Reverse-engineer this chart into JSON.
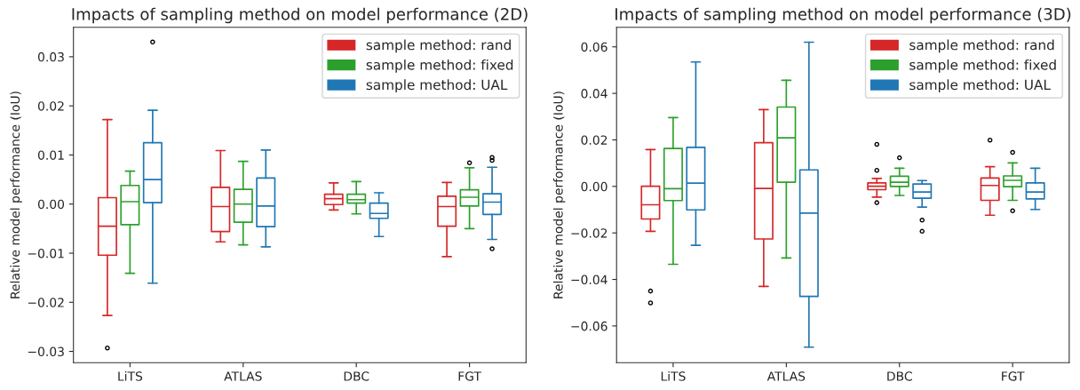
{
  "chart_data": [
    {
      "type": "box",
      "title": "Impacts of sampling method on model performance (2D)",
      "ylabel": "Relative model performance (IoU)",
      "categories": [
        "LiTS",
        "ATLAS",
        "DBC",
        "FGT"
      ],
      "ylim": [
        -0.0323,
        0.036
      ],
      "yticks": [
        {
          "value": -0.03,
          "label": "−0.03"
        },
        {
          "value": -0.02,
          "label": "−0.02"
        },
        {
          "value": -0.01,
          "label": "−0.01"
        },
        {
          "value": 0.0,
          "label": "0.00"
        },
        {
          "value": 0.01,
          "label": "0.01"
        },
        {
          "value": 0.02,
          "label": "0.02"
        },
        {
          "value": 0.03,
          "label": "0.03"
        }
      ],
      "legend": "top right",
      "series": [
        {
          "name": "sample method: rand",
          "color": "#d62728",
          "boxes": [
            {
              "low": -0.0227,
              "q1": -0.0104,
              "median": -0.0045,
              "q3": 0.0013,
              "high": 0.0172,
              "outliers": [
                -0.0293
              ]
            },
            {
              "low": -0.0077,
              "q1": -0.0056,
              "median": -0.0005,
              "q3": 0.0034,
              "high": 0.0109
            },
            {
              "low": -0.0012,
              "q1": -0.0001,
              "median": 0.0011,
              "q3": 0.002,
              "high": 0.0043
            },
            {
              "low": -0.0107,
              "q1": -0.0045,
              "median": -0.0005,
              "q3": 0.0016,
              "high": 0.0044
            }
          ]
        },
        {
          "name": "sample method: fixed",
          "color": "#2ca02c",
          "boxes": [
            {
              "low": -0.0141,
              "q1": -0.0042,
              "median": 0.0005,
              "q3": 0.0038,
              "high": 0.0067
            },
            {
              "low": -0.0083,
              "q1": -0.0037,
              "median": 0.0,
              "q3": 0.003,
              "high": 0.0087
            },
            {
              "low": -0.002,
              "q1": 0.0002,
              "median": 0.0009,
              "q3": 0.002,
              "high": 0.0046
            },
            {
              "low": -0.005,
              "q1": -0.0004,
              "median": 0.0014,
              "q3": 0.0029,
              "high": 0.0074,
              "outliers": [
                0.0084
              ]
            }
          ]
        },
        {
          "name": "sample method: UAL",
          "color": "#1f77b4",
          "boxes": [
            {
              "low": -0.0161,
              "q1": 0.0003,
              "median": 0.005,
              "q3": 0.0125,
              "high": 0.0191,
              "outliers": [
                0.033
              ]
            },
            {
              "low": -0.0087,
              "q1": -0.0046,
              "median": -0.0004,
              "q3": 0.0053,
              "high": 0.011
            },
            {
              "low": -0.0066,
              "q1": -0.0029,
              "median": -0.0019,
              "q3": 0.0002,
              "high": 0.0023
            },
            {
              "low": -0.0072,
              "q1": -0.0021,
              "median": 0.0004,
              "q3": 0.0021,
              "high": 0.0075,
              "outliers": [
                0.0095,
                0.0089,
                -0.0091
              ]
            }
          ]
        }
      ]
    },
    {
      "type": "box",
      "title": "Impacts of sampling method on model performance (3D)",
      "ylabel": "Relative model performance (IoU)",
      "categories": [
        "LiTS",
        "ATLAS",
        "DBC",
        "FGT"
      ],
      "ylim": [
        -0.0758,
        0.0684
      ],
      "yticks": [
        {
          "value": -0.06,
          "label": "−0.06"
        },
        {
          "value": -0.04,
          "label": "−0.04"
        },
        {
          "value": -0.02,
          "label": "−0.02"
        },
        {
          "value": 0.0,
          "label": "0.00"
        },
        {
          "value": 0.02,
          "label": "0.02"
        },
        {
          "value": 0.04,
          "label": "0.04"
        },
        {
          "value": 0.06,
          "label": "0.06"
        }
      ],
      "legend": "top right",
      "series": [
        {
          "name": "sample method: rand",
          "color": "#d62728",
          "boxes": [
            {
              "low": -0.0193,
              "q1": -0.014,
              "median": -0.0079,
              "q3": 0.0001,
              "high": 0.0158,
              "outliers": [
                -0.045,
                -0.0501
              ]
            },
            {
              "low": -0.043,
              "q1": -0.0226,
              "median": -0.0009,
              "q3": 0.0188,
              "high": 0.033
            },
            {
              "low": -0.0046,
              "q1": -0.0014,
              "median": 0.0001,
              "q3": 0.0015,
              "high": 0.0034,
              "outliers": [
                0.0181,
                0.0069,
                -0.007
              ]
            },
            {
              "low": -0.0124,
              "q1": -0.006,
              "median": 0.0004,
              "q3": 0.0036,
              "high": 0.0085,
              "outliers": [
                0.0199
              ]
            }
          ]
        },
        {
          "name": "sample method: fixed",
          "color": "#2ca02c",
          "boxes": [
            {
              "low": -0.0335,
              "q1": -0.0061,
              "median": -0.001,
              "q3": 0.0163,
              "high": 0.0296
            },
            {
              "low": -0.0308,
              "q1": 0.0018,
              "median": 0.0209,
              "q3": 0.0341,
              "high": 0.0456
            },
            {
              "low": -0.0039,
              "q1": 0.0,
              "median": 0.0018,
              "q3": 0.0044,
              "high": 0.0078,
              "outliers": [
                0.0123
              ]
            },
            {
              "low": -0.006,
              "q1": -0.0001,
              "median": 0.0026,
              "q3": 0.0045,
              "high": 0.0101,
              "outliers": [
                0.0146,
                -0.0105
              ]
            }
          ]
        },
        {
          "name": "sample method: UAL",
          "color": "#1f77b4",
          "boxes": [
            {
              "low": -0.0253,
              "q1": -0.0101,
              "median": 0.0014,
              "q3": 0.0168,
              "high": 0.0535
            },
            {
              "low": -0.0691,
              "q1": -0.0473,
              "median": -0.0115,
              "q3": 0.0071,
              "high": 0.062
            },
            {
              "low": -0.0089,
              "q1": -0.0051,
              "median": -0.0024,
              "q3": 0.001,
              "high": 0.0025,
              "outliers": [
                -0.0145,
                -0.0193
              ]
            },
            {
              "low": -0.0099,
              "q1": -0.0054,
              "median": -0.0024,
              "q3": 0.0015,
              "high": 0.0078
            }
          ]
        }
      ]
    }
  ]
}
